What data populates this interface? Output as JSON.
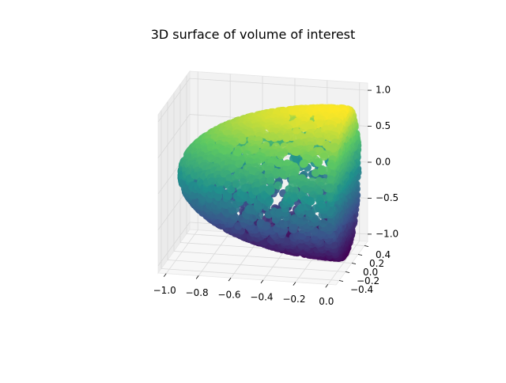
{
  "chart_data": {
    "type": "scatter",
    "projection": "3d",
    "title": "3D surface of volume of interest",
    "xlabel": "",
    "ylabel": "",
    "zlabel": "",
    "x_ticks": [
      "−1.0",
      "−0.8",
      "−0.6",
      "−0.4",
      "−0.2",
      "0.0"
    ],
    "y_ticks": [
      "−0.4",
      "−0.2",
      "0.0",
      "0.2",
      "0.4"
    ],
    "z_ticks": [
      "−1.0",
      "−0.5",
      "0.0",
      "0.5",
      "1.0"
    ],
    "xlim": [
      -1.05,
      0.05
    ],
    "ylim": [
      -0.5,
      0.5
    ],
    "zlim": [
      -1.1,
      1.1
    ],
    "grid": true,
    "colormap": "viridis",
    "color_by": "z",
    "colormap_stops": [
      "#440154",
      "#3b528b",
      "#21918c",
      "#5ec962",
      "#fde725"
    ],
    "shape": "half-ellipsoid, x from -1 to 0, y from -0.45 to 0.45, z from -1 to 1, flat face at x = 0",
    "pane_color": "#f2f2f2",
    "grid_color": "#d9d9d9"
  }
}
